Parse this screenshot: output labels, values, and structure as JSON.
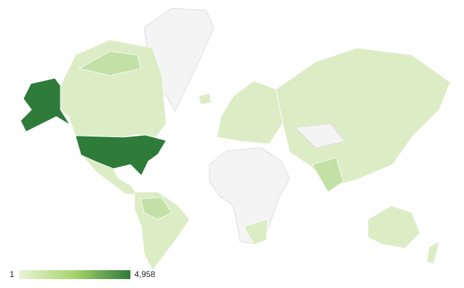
{
  "legend": {
    "min": 1,
    "max": {
      "value": 4958,
      "label": "4,958"
    },
    "colors": [
      "#e8f3d6",
      "#a6d46c",
      "#2e7b3a"
    ]
  }
}
